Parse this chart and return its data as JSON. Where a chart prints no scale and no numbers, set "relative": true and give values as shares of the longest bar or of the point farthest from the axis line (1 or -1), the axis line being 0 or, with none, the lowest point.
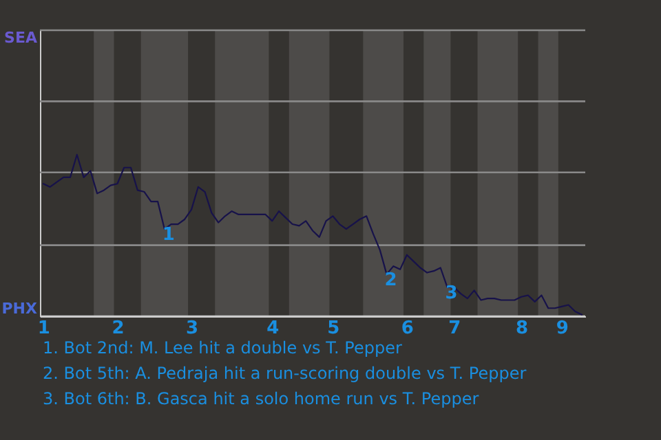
{
  "chart_data": {
    "type": "line",
    "relative": true,
    "categories": [
      "1",
      null,
      null,
      null,
      null,
      null,
      null,
      null,
      null,
      null,
      null,
      "2",
      null,
      null,
      null,
      null,
      null,
      null,
      null,
      null,
      null,
      null,
      "3",
      null,
      null,
      null,
      null,
      null,
      null,
      null,
      null,
      null,
      null,
      null,
      "4",
      null,
      null,
      null,
      null,
      null,
      null,
      null,
      null,
      "5",
      null,
      null,
      null,
      null,
      null,
      null,
      null,
      null,
      null,
      null,
      "6",
      null,
      null,
      null,
      null,
      null,
      null,
      "7",
      null,
      null,
      null,
      null,
      null,
      null,
      null,
      null,
      null,
      "8",
      null,
      null,
      null,
      null,
      null,
      "9",
      null,
      null,
      null
    ],
    "series": [
      {
        "color": "#17124a",
        "values": [
          0.82,
          0.8,
          0.83,
          0.86,
          0.86,
          1,
          0.86,
          0.9,
          0.76,
          0.78,
          0.81,
          0.82,
          0.92,
          0.92,
          0.78,
          0.77,
          0.71,
          0.71,
          0.54,
          0.57,
          0.57,
          0.6,
          0.66,
          0.8,
          0.77,
          0.64,
          0.58,
          0.62,
          0.65,
          0.63,
          0.63,
          0.63,
          0.63,
          0.63,
          0.59,
          0.65,
          0.61,
          0.57,
          0.56,
          0.59,
          0.53,
          0.49,
          0.59,
          0.62,
          0.57,
          0.54,
          0.57,
          0.6,
          0.62,
          0.51,
          0.41,
          0.26,
          0.31,
          0.29,
          0.38,
          0.34,
          0.3,
          0.27,
          0.28,
          0.3,
          0.18,
          0.18,
          0.14,
          0.11,
          0.16,
          0.1,
          0.11,
          0.11,
          0.1,
          0.1,
          0.1,
          0.12,
          0.13,
          0.09,
          0.13,
          0.05,
          0.05,
          0.06,
          0.07,
          0.03,
          0.01
        ],
        "line_style": "solid"
      }
    ],
    "ref_lines": [
      {
        "axis": "y",
        "value": 0,
        "label": "PHX",
        "color": "#cccccc"
      },
      {
        "axis": "y",
        "value": 0.44,
        "color": "#8a8a8a"
      },
      {
        "axis": "y",
        "value": 0.89,
        "color": "#8a8a8a"
      },
      {
        "axis": "y",
        "value": 1.33,
        "color": "#8a8a8a"
      },
      {
        "axis": "y",
        "value": 1.77,
        "label": "SEA",
        "color": "#8a8a8a"
      }
    ],
    "annotations": [
      {
        "text": "1",
        "y": 0.54
      },
      {
        "text": "2",
        "y": 0.26
      },
      {
        "text": "3",
        "y": 0.18
      },
      "1. Bot 2nd: M. Lee hit a double vs T. Pepper",
      "2. Bot 5th: A. Pedraja hit a run-scoring double vs T. Pepper",
      "3. Bot 6th: B. Gasca hit a solo home run vs T. Pepper"
    ]
  }
}
